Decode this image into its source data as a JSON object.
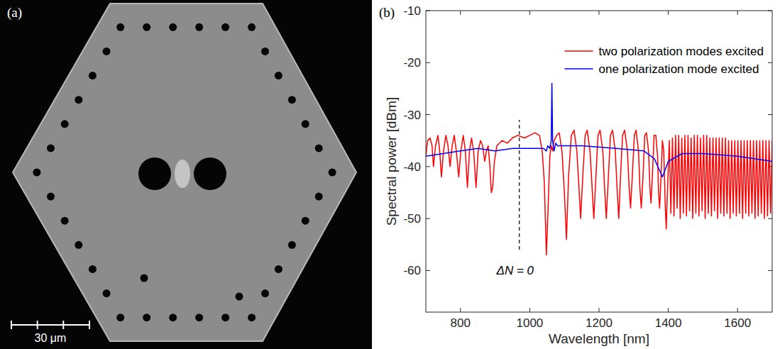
{
  "image_panel": {
    "label": "(a)",
    "scale_bar": "30 μm"
  },
  "chart_data": {
    "type": "line",
    "panel_label": "(b)",
    "x_label": "Wavelength [nm]",
    "y_label": "Spectral power [dBm]",
    "xlim": [
      700,
      1700
    ],
    "ylim": [
      -68,
      -10
    ],
    "xticks": [
      800,
      1000,
      1200,
      1400,
      1600
    ],
    "yticks": [
      -60,
      -50,
      -40,
      -30,
      -20,
      -10
    ],
    "grid": false,
    "legend": "upper right",
    "annotations": [
      {
        "text": "ΔN = 0",
        "x": 970,
        "y": -60,
        "y_range": [
          -56,
          -31
        ],
        "line_style": "dashed"
      }
    ],
    "series": [
      {
        "name": "two polarization modes excited",
        "color": "#ff0000",
        "x": [
          700,
          705,
          712,
          718,
          722,
          728,
          735,
          740,
          745,
          751,
          758,
          764,
          770,
          776,
          782,
          788,
          795,
          801,
          808,
          814,
          820,
          826,
          832,
          838,
          845,
          851,
          858,
          864,
          870,
          875,
          880,
          885,
          889,
          893,
          898,
          905,
          920,
          935,
          950,
          965,
          985,
          1000,
          1015,
          1028,
          1036,
          1042,
          1048,
          1053,
          1058,
          1062,
          1066,
          1070,
          1078,
          1085,
          1093,
          1100,
          1106,
          1112,
          1120,
          1128,
          1136,
          1142,
          1147,
          1153,
          1160,
          1166,
          1174,
          1180,
          1185,
          1191,
          1197,
          1203,
          1211,
          1216,
          1221,
          1227,
          1233,
          1239,
          1247,
          1252,
          1257,
          1262,
          1268,
          1274,
          1282,
          1287,
          1291,
          1296,
          1302,
          1307,
          1314,
          1318,
          1322,
          1327,
          1332,
          1337,
          1343,
          1347,
          1350,
          1354,
          1359,
          1364,
          1369,
          1372,
          1375,
          1379,
          1383,
          1387,
          1391,
          1394,
          1398,
          1403,
          1407.5,
          1412,
          1416.5,
          1421,
          1425.5,
          1430,
          1434.5,
          1439,
          1443.5,
          1448,
          1452.5,
          1457,
          1461.5,
          1466,
          1470.5,
          1475,
          1479.5,
          1484,
          1488.5,
          1493,
          1497.5,
          1502,
          1506.5,
          1511,
          1515.5,
          1520,
          1524.5,
          1529,
          1533.5,
          1538,
          1542.5,
          1547,
          1551.5,
          1556,
          1560.5,
          1565,
          1569.5,
          1574,
          1578.5,
          1583,
          1587.5,
          1592,
          1596.5,
          1601,
          1605.5,
          1610,
          1614.5,
          1619,
          1623.5,
          1628,
          1632.5,
          1637,
          1641.5,
          1646,
          1650.5,
          1655,
          1659.5,
          1664,
          1668.5,
          1673,
          1677.5,
          1682,
          1686.5,
          1691,
          1695.5,
          1700
        ],
        "values": [
          -38,
          -35,
          -34.5,
          -36,
          -40,
          -36,
          -34,
          -37,
          -42,
          -37,
          -34,
          -36,
          -40,
          -36,
          -34,
          -37,
          -42,
          -37,
          -34,
          -37,
          -44,
          -37,
          -34.5,
          -37,
          -44,
          -37,
          -35,
          -36,
          -39,
          -37,
          -36,
          -40,
          -45,
          -44,
          -39,
          -36,
          -35,
          -35.5,
          -34.5,
          -34,
          -34.5,
          -34,
          -33.5,
          -34,
          -37,
          -43,
          -57,
          -48,
          -38,
          -36,
          -37,
          -35,
          -34,
          -33.5,
          -37,
          -45,
          -54,
          -42,
          -34,
          -33,
          -37,
          -44,
          -50,
          -42,
          -34,
          -33,
          -37,
          -44,
          -50,
          -42,
          -34,
          -33,
          -37,
          -44,
          -50,
          -42,
          -34,
          -33,
          -37,
          -44,
          -50,
          -42,
          -34,
          -33,
          -37,
          -44,
          -48,
          -42,
          -34,
          -33,
          -37,
          -44,
          -48,
          -42,
          -34,
          -33.5,
          -37,
          -44,
          -47,
          -42,
          -34,
          -34,
          -38,
          -45,
          -48,
          -42,
          -35,
          -37,
          -47,
          -52,
          -44,
          -35,
          -49,
          -34.5,
          -49.5,
          -34,
          -48,
          -34,
          -50,
          -34.5,
          -49,
          -34,
          -49.5,
          -34,
          -48.5,
          -34.5,
          -50,
          -34,
          -49,
          -34,
          -49.5,
          -34.5,
          -48.5,
          -34,
          -50,
          -34,
          -49,
          -34.5,
          -49.5,
          -34.5,
          -48.5,
          -34.5,
          -50,
          -34.5,
          -49,
          -34.5,
          -49.5,
          -34.5,
          -49,
          -35,
          -50,
          -35,
          -49,
          -35,
          -49.5,
          -35,
          -49,
          -35,
          -50,
          -35,
          -49,
          -35,
          -49.5,
          -35,
          -49,
          -35,
          -50,
          -35,
          -49.5,
          -35,
          -49,
          -35,
          -50,
          -35,
          -49.5,
          -35,
          -49,
          -35
        ]
      },
      {
        "name": "one polarization mode excited",
        "color": "#0000ff",
        "x": [
          700,
          750,
          800,
          850,
          900,
          950,
          1000,
          1040,
          1048,
          1052,
          1058,
          1062,
          1064,
          1066,
          1070,
          1075,
          1080,
          1150,
          1250,
          1330,
          1360,
          1383,
          1400,
          1440,
          1500,
          1600,
          1700
        ],
        "values": [
          -38,
          -37.5,
          -37,
          -36.5,
          -37,
          -36.5,
          -36.5,
          -36.5,
          -37,
          -36,
          -36.5,
          -35,
          -24,
          -35,
          -37,
          -35.5,
          -36,
          -36,
          -36.5,
          -37,
          -38.5,
          -42,
          -39,
          -37.5,
          -37.5,
          -38,
          -39
        ]
      }
    ]
  }
}
